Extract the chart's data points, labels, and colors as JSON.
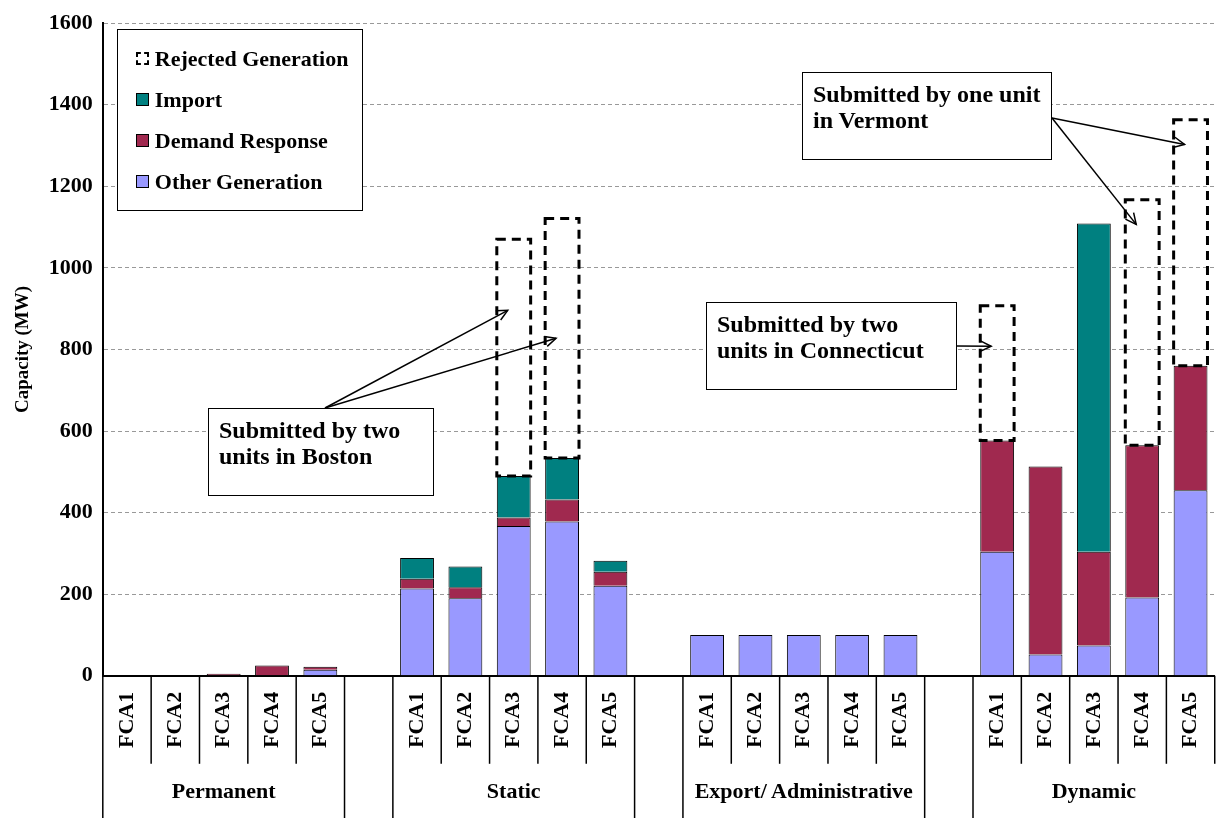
{
  "chart_data": {
    "type": "bar",
    "stacked": true,
    "ylabel": "Capacity (MW)",
    "categories": [
      "FCA1",
      "FCA2",
      "FCA3",
      "FCA4",
      "FCA5",
      null,
      "FCA1",
      "FCA2",
      "FCA3",
      "FCA4",
      "FCA5",
      null,
      "FCA1",
      "FCA2",
      "FCA3",
      "FCA4",
      "FCA5",
      null,
      "FCA1",
      "FCA2",
      "FCA3",
      "FCA4",
      "FCA5"
    ],
    "series": [
      {
        "name": "Other Generation",
        "color": "#9999ff",
        "values": [
          0,
          0,
          0,
          0,
          15,
          null,
          214,
          190,
          367,
          378,
          221,
          null,
          100,
          100,
          100,
          100,
          100,
          null,
          304,
          52,
          74,
          192,
          455
        ]
      },
      {
        "name": "Demand Response",
        "color": "#a0294f",
        "values": [
          0,
          0,
          5,
          25,
          7,
          null,
          24,
          27,
          21,
          54,
          34,
          null,
          0,
          0,
          0,
          0,
          0,
          null,
          273,
          461,
          230,
          373,
          305
        ]
      },
      {
        "name": "Import",
        "color": "#008080",
        "values": [
          0,
          0,
          0,
          0,
          0,
          null,
          51,
          51,
          102,
          102,
          27,
          null,
          0,
          0,
          0,
          0,
          0,
          null,
          0,
          0,
          805,
          0,
          0
        ]
      },
      {
        "name": "Rejected Generation",
        "color": "#000000",
        "line_style": "dashed",
        "values": [
          null,
          null,
          null,
          null,
          null,
          null,
          null,
          null,
          580,
          587,
          null,
          null,
          null,
          null,
          null,
          null,
          null,
          null,
          330,
          null,
          null,
          602,
          603
        ]
      }
    ],
    "ylim": [
      0,
      1600
    ],
    "yticks": [
      0,
      200,
      400,
      600,
      800,
      1000,
      1200,
      1400,
      1600
    ],
    "grid": "y",
    "legend": "top left",
    "annotations": [
      "Permanent",
      "Static",
      "Export/ Administrative",
      "Dynamic",
      "Submitted by two units in Boston",
      "Submitted by two units in Connecticut",
      "Submitted by one unit in Vermont"
    ]
  }
}
